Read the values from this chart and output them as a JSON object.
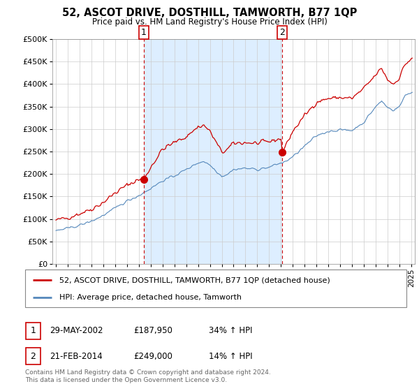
{
  "title": "52, ASCOT DRIVE, DOSTHILL, TAMWORTH, B77 1QP",
  "subtitle": "Price paid vs. HM Land Registry's House Price Index (HPI)",
  "legend_line1": "52, ASCOT DRIVE, DOSTHILL, TAMWORTH, B77 1QP (detached house)",
  "legend_line2": "HPI: Average price, detached house, Tamworth",
  "annotation1_label": "1",
  "annotation1_date": "29-MAY-2002",
  "annotation1_price": "£187,950",
  "annotation1_hpi": "34% ↑ HPI",
  "annotation2_label": "2",
  "annotation2_date": "21-FEB-2014",
  "annotation2_price": "£249,000",
  "annotation2_hpi": "14% ↑ HPI",
  "footnote": "Contains HM Land Registry data © Crown copyright and database right 2024.\nThis data is licensed under the Open Government Licence v3.0.",
  "red_color": "#cc0000",
  "blue_color": "#5588bb",
  "shading_color": "#ddeeff",
  "marker1_x": 2002.42,
  "marker1_y": 187950,
  "marker2_x": 2014.12,
  "marker2_y": 249000,
  "ylim": [
    0,
    500000
  ],
  "xlim": [
    1994.7,
    2025.3
  ],
  "yticks": [
    0,
    50000,
    100000,
    150000,
    200000,
    250000,
    300000,
    350000,
    400000,
    450000,
    500000
  ],
  "ytick_labels": [
    "£0",
    "£50K",
    "£100K",
    "£150K",
    "£200K",
    "£250K",
    "£300K",
    "£350K",
    "£400K",
    "£450K",
    "£500K"
  ],
  "xticks": [
    1995,
    1996,
    1997,
    1998,
    1999,
    2000,
    2001,
    2002,
    2003,
    2004,
    2005,
    2006,
    2007,
    2008,
    2009,
    2010,
    2011,
    2012,
    2013,
    2014,
    2015,
    2016,
    2017,
    2018,
    2019,
    2020,
    2021,
    2022,
    2023,
    2024,
    2025
  ]
}
